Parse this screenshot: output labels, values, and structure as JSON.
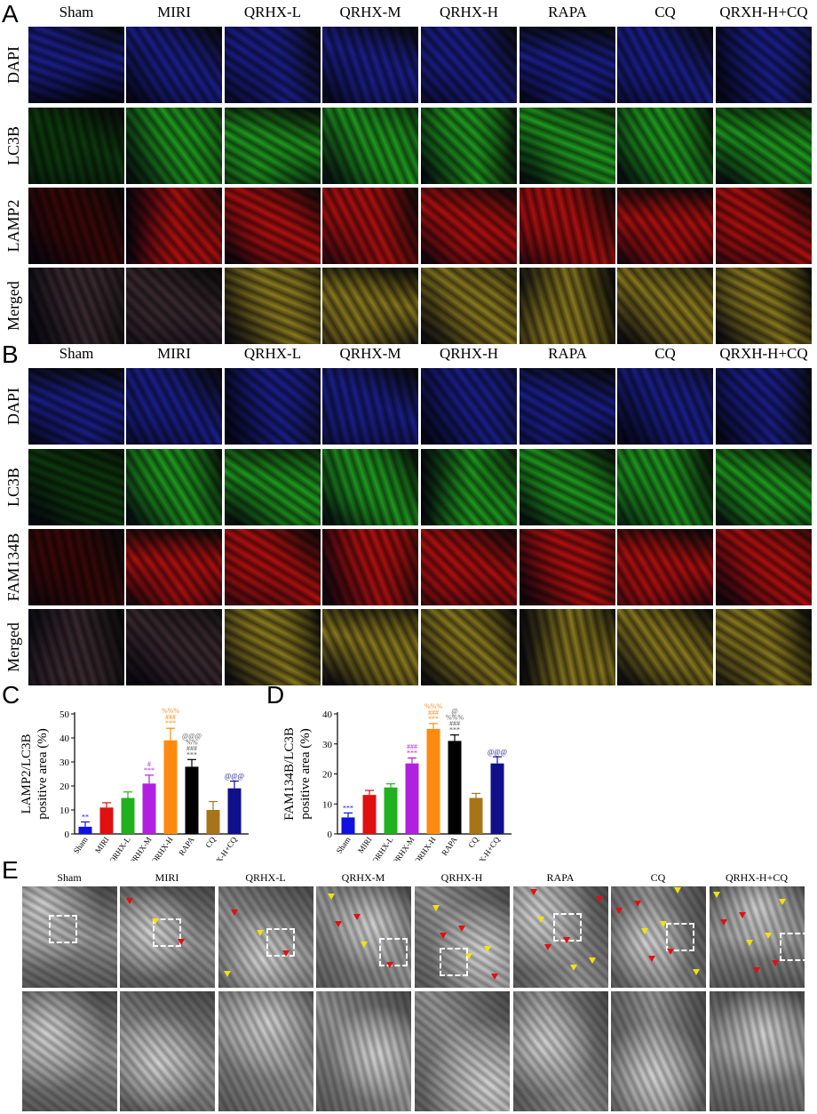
{
  "panels": {
    "a": "A",
    "b": "B",
    "c": "C",
    "d": "D",
    "e": "E"
  },
  "panel_a": {
    "columns": [
      "Sham",
      "MIRI",
      "QRHX-L",
      "QRHX-M",
      "QRHX-H",
      "RAPA",
      "CQ",
      "QRXH-H+CQ"
    ],
    "rows": [
      {
        "label": "DAPI",
        "color": "#1a1f8a"
      },
      {
        "label": "LC3B",
        "color": "#1f9a1f"
      },
      {
        "label": "LAMP2",
        "color": "#b01010"
      },
      {
        "label": "Merged",
        "color": "#8a6a20"
      }
    ]
  },
  "panel_b": {
    "columns": [
      "Sham",
      "MIRI",
      "QRHX-L",
      "QRHX-M",
      "QRHX-H",
      "RAPA",
      "CQ",
      "QRXH-H+CQ"
    ],
    "rows": [
      {
        "label": "DAPI",
        "color": "#1a1f8a"
      },
      {
        "label": "LC3B",
        "color": "#1f9a1f"
      },
      {
        "label": "FAM134B",
        "color": "#b01010"
      },
      {
        "label": "Merged",
        "color": "#8a6a20"
      }
    ]
  },
  "panel_e": {
    "columns": [
      "Sham",
      "MIRI",
      "QRHX-L",
      "QRHX-M",
      "QRHX-H",
      "RAPA",
      "CQ",
      "QRHX-H+CQ"
    ]
  },
  "chart_data": [
    {
      "type": "bar",
      "panel": "C",
      "ylabel": "LAMP2/LC3B positive area (%)",
      "ylabel_lines": [
        "LAMP2/LC3B",
        "positive area (%)"
      ],
      "ylim": [
        0,
        50
      ],
      "yticks": [
        "0",
        "10",
        "20",
        "30",
        "40",
        "50"
      ],
      "categories": [
        "Sham",
        "MIRI",
        "QRHX-L",
        "QRHX-M",
        "QRHX-H",
        "RAPA",
        "CQ",
        "QRHX-H+CQ"
      ],
      "values": [
        3,
        11,
        15,
        21,
        39,
        28,
        10,
        19
      ],
      "errors": [
        2,
        2,
        2.5,
        3.5,
        5,
        3,
        3.5,
        3
      ],
      "colors": [
        "#1010e0",
        "#e01010",
        "#20b020",
        "#b020e0",
        "#ff8a10",
        "#000000",
        "#a8741a",
        "#10108a"
      ],
      "annotations": [
        [
          "**"
        ],
        [],
        [],
        [
          "#",
          "***"
        ],
        [
          "%%%",
          "###",
          "***"
        ],
        [
          "@@@",
          "%%",
          "###",
          "***"
        ],
        [],
        [
          "@@@"
        ]
      ]
    },
    {
      "type": "bar",
      "panel": "D",
      "ylabel": "FAM134B/LC3B positive area (%)",
      "ylabel_lines": [
        "FAM134B/LC3B",
        "positive area (%)"
      ],
      "ylim": [
        0,
        40
      ],
      "yticks": [
        "0",
        "10",
        "20",
        "30",
        "40"
      ],
      "categories": [
        "Sham",
        "MIRI",
        "QRHX-L",
        "QRHX-M",
        "QRHX-H",
        "RAPA",
        "CQ",
        "QRHX-H+CQ"
      ],
      "values": [
        5.5,
        13,
        15.5,
        23.5,
        35,
        31,
        12,
        23.5
      ],
      "errors": [
        1.5,
        1.5,
        1.2,
        1.8,
        1.8,
        2,
        1.5,
        2.2
      ],
      "colors": [
        "#1010e0",
        "#e01010",
        "#20b020",
        "#b020e0",
        "#ff8a10",
        "#000000",
        "#a8741a",
        "#10108a"
      ],
      "annotations": [
        [
          "***"
        ],
        [],
        [],
        [
          "###",
          "***"
        ],
        [
          "%%%",
          "###",
          "***"
        ],
        [
          "@",
          "%%%",
          "###",
          "***"
        ],
        [],
        [
          "@@@"
        ]
      ]
    }
  ]
}
